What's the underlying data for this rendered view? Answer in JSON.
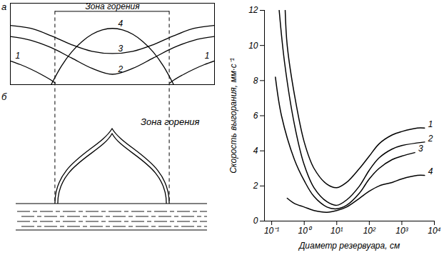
{
  "chart_data": [
    {
      "type": "line",
      "label": "а",
      "annotation": "Зона горения",
      "zone": [
        2.2,
        7.8
      ],
      "tick_labels": false,
      "color": "#000000",
      "xlim": [
        0,
        10
      ],
      "ylim": [
        0,
        11
      ],
      "series": [
        {
          "name": "1",
          "x": [
            0,
            0.5,
            1,
            1.5,
            2,
            2.2,
            5,
            7.8,
            8,
            8.5,
            9,
            9.5,
            10
          ],
          "values": [
            3.2,
            2.7,
            2.1,
            1.4,
            0.6,
            0.2,
            null,
            0.2,
            0.6,
            1.4,
            2.1,
            2.7,
            3.2
          ]
        },
        {
          "name": "2",
          "x": [
            0,
            1,
            2,
            3,
            4,
            5,
            6,
            7,
            8,
            9,
            10
          ],
          "values": [
            6.5,
            6.0,
            5.0,
            3.6,
            2.2,
            1.4,
            2.2,
            3.6,
            5.0,
            6.0,
            6.5
          ]
        },
        {
          "name": "3",
          "x": [
            0,
            1,
            2,
            3,
            4,
            5,
            6,
            7,
            8,
            9,
            10
          ],
          "values": [
            8.0,
            7.6,
            6.6,
            5.4,
            4.5,
            4.2,
            4.5,
            5.4,
            6.6,
            7.6,
            8.0
          ]
        },
        {
          "name": "4",
          "x": [
            2.0,
            2.5,
            3,
            3.5,
            4,
            4.5,
            5,
            5.5,
            6,
            6.5,
            7,
            7.5,
            8
          ],
          "values": [
            0,
            2.5,
            4.4,
            5.8,
            6.8,
            7.4,
            7.6,
            7.4,
            6.8,
            5.8,
            4.4,
            2.5,
            0
          ]
        }
      ]
    },
    {
      "type": "line",
      "log": "x",
      "color": "#000000",
      "xlabel": "Диаметр резервуара, см",
      "ylabel": "Скорость выгорания, мм·с⁻¹",
      "xlim": [
        0.06,
        10000
      ],
      "ylim": [
        0,
        12
      ],
      "xticks": [
        {
          "value": 0.1,
          "label": "10⁻¹"
        },
        {
          "value": 1,
          "label": "10⁰"
        },
        {
          "value": 10,
          "label": "10¹"
        },
        {
          "value": 100,
          "label": "10²"
        },
        {
          "value": 1000,
          "label": "10³"
        },
        {
          "value": 10000,
          "label": "10⁴"
        }
      ],
      "yticks": [
        0,
        2,
        4,
        6,
        8,
        10,
        12
      ],
      "series": [
        {
          "name": "1",
          "x": [
            0.26,
            0.3,
            0.5,
            1,
            2,
            5,
            10,
            20,
            50,
            100,
            200,
            500,
            1000,
            3000,
            5000
          ],
          "values": [
            12,
            10.0,
            7.2,
            4.5,
            3.0,
            2.1,
            1.9,
            2.2,
            3.0,
            3.7,
            4.4,
            4.9,
            5.1,
            5.3,
            5.3
          ]
        },
        {
          "name": "2",
          "x": [
            0.17,
            0.25,
            0.5,
            1,
            2,
            5,
            10,
            20,
            50,
            100,
            200,
            500,
            1000,
            5000
          ],
          "values": [
            12,
            9.0,
            5.5,
            3.2,
            1.9,
            1.1,
            0.9,
            1.2,
            2.0,
            2.9,
            3.6,
            4.1,
            4.3,
            4.5
          ]
        },
        {
          "name": "3",
          "x": [
            0.13,
            0.2,
            0.5,
            1,
            2,
            5,
            10,
            20,
            50,
            100,
            200,
            500,
            1000,
            2500
          ],
          "values": [
            8.2,
            6.0,
            3.5,
            2.3,
            1.4,
            0.8,
            0.7,
            0.9,
            1.6,
            2.4,
            3.0,
            3.5,
            3.7,
            3.9
          ]
        },
        {
          "name": "4",
          "x": [
            0.3,
            0.5,
            1,
            2,
            5,
            10,
            20,
            50,
            100,
            200,
            500,
            1000,
            3000,
            5000
          ],
          "values": [
            1.3,
            1.0,
            0.8,
            0.6,
            0.5,
            0.6,
            0.8,
            1.3,
            1.7,
            2.0,
            2.2,
            2.4,
            2.6,
            2.6
          ]
        }
      ]
    }
  ],
  "diagram": {
    "label": "б",
    "zone_label": "Зона горения"
  }
}
